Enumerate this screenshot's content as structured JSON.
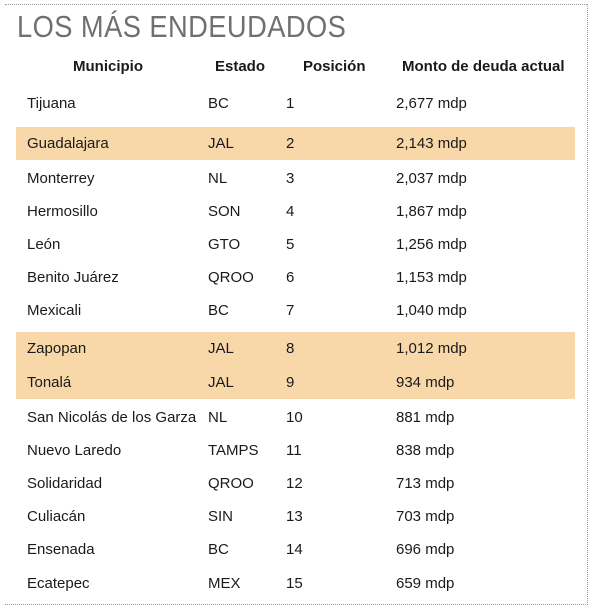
{
  "title": "LOS MÁS ENDEUDADOS",
  "columns": [
    "Municipio",
    "Estado",
    "Posición",
    "Monto de deuda actual"
  ],
  "highlight_color": "#f8d8a8",
  "rows": [
    {
      "municipio": "Tijuana",
      "estado": "BC",
      "posicion": "1",
      "monto": "2,677 mdp",
      "highlight": false
    },
    {
      "municipio": "Guadalajara",
      "estado": "JAL",
      "posicion": "2",
      "monto": "2,143 mdp",
      "highlight": true
    },
    {
      "municipio": "Monterrey",
      "estado": "NL",
      "posicion": "3",
      "monto": "2,037 mdp",
      "highlight": false
    },
    {
      "municipio": "Hermosillo",
      "estado": "SON",
      "posicion": "4",
      "monto": "1,867 mdp",
      "highlight": false
    },
    {
      "municipio": "León",
      "estado": "GTO",
      "posicion": "5",
      "monto": "1,256 mdp",
      "highlight": false
    },
    {
      "municipio": "Benito Juárez",
      "estado": "QROO",
      "posicion": "6",
      "monto": "1,153 mdp",
      "highlight": false
    },
    {
      "municipio": "Mexicali",
      "estado": "BC",
      "posicion": "7",
      "monto": "1,040 mdp",
      "highlight": false
    },
    {
      "municipio": "Zapopan",
      "estado": "JAL",
      "posicion": "8",
      "monto": "1,012 mdp",
      "highlight": true
    },
    {
      "municipio": "Tonalá",
      "estado": "JAL",
      "posicion": "9",
      "monto": "934 mdp",
      "highlight": true
    },
    {
      "municipio": "San Nicolás de los Garza",
      "estado": "NL",
      "posicion": "10",
      "monto": "881 mdp",
      "highlight": false
    },
    {
      "municipio": "Nuevo Laredo",
      "estado": "TAMPS",
      "posicion": "11",
      "monto": "838 mdp",
      "highlight": false
    },
    {
      "municipio": "Solidaridad",
      "estado": "QROO",
      "posicion": "12",
      "monto": "713 mdp",
      "highlight": false
    },
    {
      "municipio": "Culiacán",
      "estado": "SIN",
      "posicion": "13",
      "monto": "703 mdp",
      "highlight": false
    },
    {
      "municipio": "Ensenada",
      "estado": "BC",
      "posicion": "14",
      "monto": "696 mdp",
      "highlight": false
    },
    {
      "municipio": "Ecatepec",
      "estado": "MEX",
      "posicion": "15",
      "monto": "659 mdp",
      "highlight": false
    }
  ]
}
